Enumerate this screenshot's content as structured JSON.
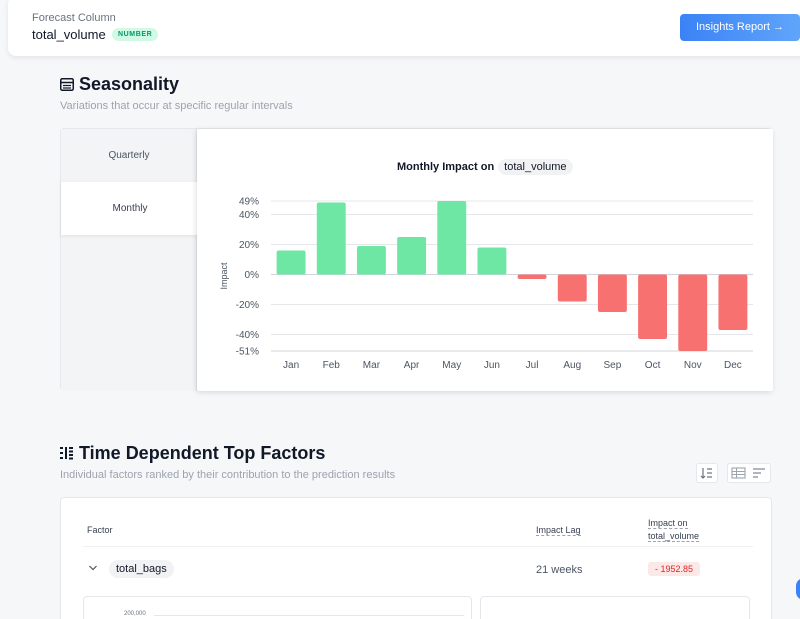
{
  "forecast": {
    "label": "Forecast Column",
    "value": "total_volume",
    "badge": "NUMBER",
    "insights_button": "Insights Report →"
  },
  "seasonality": {
    "title": "Seasonality",
    "subtitle": "Variations that occur at specific regular intervals",
    "tabs": [
      "Quarterly",
      "Monthly"
    ],
    "active_tab": "Monthly",
    "chart_title_prefix": "Monthly Impact on",
    "chart_title_column": "total_volume"
  },
  "chart_data": {
    "type": "bar",
    "title": "Monthly Impact on total_volume",
    "ylabel": "Impact",
    "xlabel": "",
    "categories": [
      "Jan",
      "Feb",
      "Mar",
      "Apr",
      "May",
      "Jun",
      "Jul",
      "Aug",
      "Sep",
      "Oct",
      "Nov",
      "Dec"
    ],
    "values": [
      16,
      48,
      19,
      25,
      49,
      18,
      -3,
      -18,
      -25,
      -43,
      -51,
      -37
    ],
    "yticks": [
      49,
      40,
      20,
      0,
      -20,
      -40,
      -51
    ],
    "ytick_labels": [
      "49%",
      "40%",
      "20%",
      "0%",
      "-20%",
      "-40%",
      "-51%"
    ],
    "ylim": [
      -51,
      49
    ],
    "positive_color": "#6ee7a4",
    "negative_color": "#f87171",
    "grid": true
  },
  "factors": {
    "title": "Time Dependent Top Factors",
    "subtitle": "Individual factors ranked by their contribution to the prediction results",
    "columns": {
      "factor": "Factor",
      "lag": "Impact Lag",
      "impact_line1": "Impact on",
      "impact_line2": "total_volume"
    },
    "rows": [
      {
        "name": "total_bags",
        "lag": "21 weeks",
        "impact": "- 1952.85"
      }
    ],
    "subchart_tick": "200,000"
  }
}
